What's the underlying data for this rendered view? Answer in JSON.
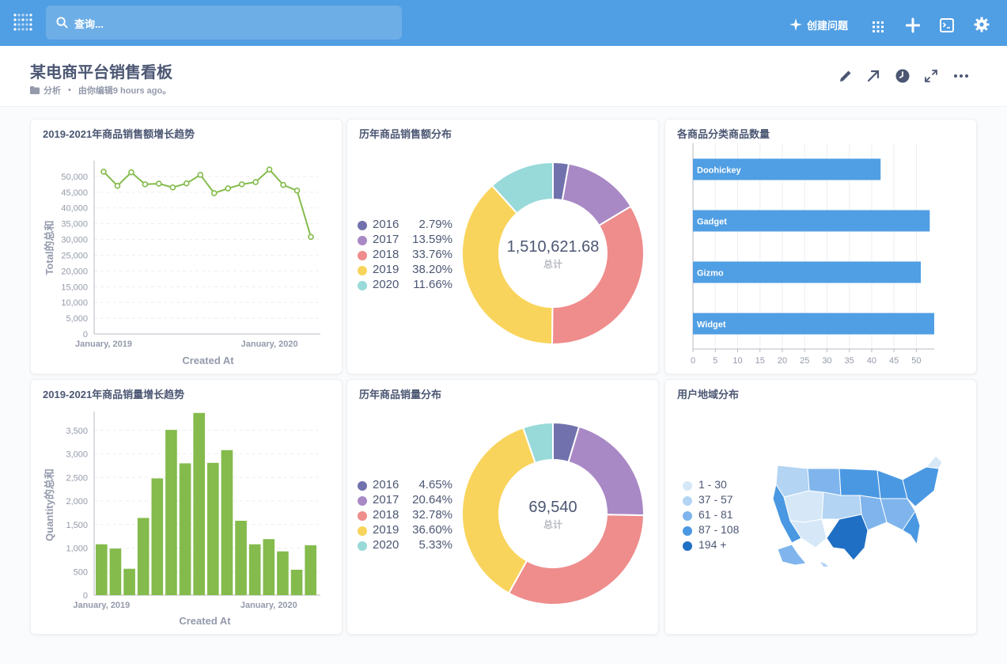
{
  "topbar": {
    "search_placeholder": "查询...",
    "create_label": "创建问题"
  },
  "header": {
    "title": "某电商平台销售看板",
    "collection": "分析",
    "edited": "由你编辑9 hours ago。"
  },
  "colors": {
    "accent": "#509ee3",
    "line": "#84bb4c",
    "bar": "#509ee3",
    "bar_green": "#84bb4c",
    "donut": [
      "#7172ad",
      "#a989c5",
      "#ef8c8c",
      "#f9d45c",
      "#98d9d9"
    ],
    "map": [
      "#d6e8f8",
      "#b3d4f3",
      "#7fb5ec",
      "#4a98e2",
      "#1f6fc5"
    ]
  },
  "cards": {
    "sales_trend": {
      "title": "2019-2021年商品销售额增长趋势",
      "chart_data": {
        "type": "line",
        "xlabel": "Created At",
        "ylabel": "Total的总和",
        "x_ticks": [
          "January, 2019",
          "January, 2020"
        ],
        "y_ticks": [
          "0",
          "5,000",
          "10,000",
          "15,000",
          "20,000",
          "25,000",
          "30,000",
          "35,000",
          "40,000",
          "45,000",
          "50,000"
        ],
        "ylim": [
          0,
          55000
        ],
        "grid": true,
        "values": [
          51500,
          47000,
          51300,
          47500,
          47700,
          46500,
          47800,
          50500,
          44700,
          46200,
          47500,
          48200,
          52200,
          47300,
          45500,
          30800
        ]
      }
    },
    "sales_dist": {
      "title": "历年商品销售额分布",
      "total": "1,510,621.68",
      "total_label": "总计",
      "chart_data": {
        "type": "pie",
        "categories": [
          "2016",
          "2017",
          "2018",
          "2019",
          "2020"
        ],
        "percent_labels": [
          "2.79%",
          "13.59%",
          "33.76%",
          "38.20%",
          "11.66%"
        ],
        "values": [
          2.79,
          13.59,
          33.76,
          38.2,
          11.66
        ]
      }
    },
    "category_count": {
      "title": "各商品分类商品数量",
      "chart_data": {
        "type": "bar",
        "categories": [
          "Doohickey",
          "Gadget",
          "Gizmo",
          "Widget"
        ],
        "values": [
          42,
          53,
          51,
          54
        ],
        "x_ticks": [
          "0",
          "5",
          "10",
          "15",
          "20",
          "25",
          "30",
          "35",
          "40",
          "45",
          "50"
        ],
        "xlim": [
          0,
          54
        ],
        "grid": true
      }
    },
    "qty_trend": {
      "title": "2019-2021年商品销量增长趋势",
      "chart_data": {
        "type": "bar",
        "xlabel": "Created At",
        "ylabel": "Quantity的总和",
        "x_ticks": [
          "January, 2019",
          "January, 2020"
        ],
        "y_ticks": [
          "0",
          "500",
          "1,000",
          "1,500",
          "2,000",
          "2,500",
          "3,000",
          "3,500"
        ],
        "ylim": [
          0,
          3900
        ],
        "grid": true,
        "values": [
          1080,
          990,
          560,
          1640,
          2480,
          3510,
          2800,
          3870,
          2810,
          3080,
          1580,
          1080,
          1190,
          930,
          540,
          1060
        ]
      }
    },
    "qty_dist": {
      "title": "历年商品销量分布",
      "total": "69,540",
      "total_label": "总计",
      "chart_data": {
        "type": "pie",
        "categories": [
          "2016",
          "2017",
          "2018",
          "2019",
          "2020"
        ],
        "percent_labels": [
          "4.65%",
          "20.64%",
          "32.78%",
          "36.60%",
          "5.33%"
        ],
        "values": [
          4.65,
          20.64,
          32.78,
          36.6,
          5.33
        ]
      }
    },
    "region": {
      "title": "用户地域分布",
      "legend": [
        "1 - 30",
        "37 - 57",
        "61 - 81",
        "87 - 108",
        "194 +"
      ]
    }
  }
}
